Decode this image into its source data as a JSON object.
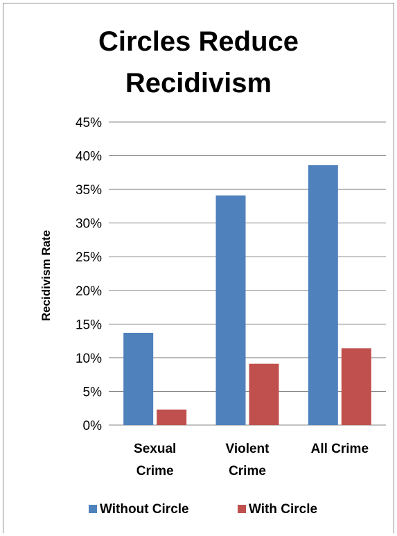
{
  "chart_data": {
    "type": "bar",
    "title_lines": [
      "Circles Reduce",
      "Recidivism"
    ],
    "ylabel": "Recidivism Rate",
    "xlabel": "",
    "categories": [
      [
        "Sexual",
        "Crime"
      ],
      [
        "Violent",
        "Crime"
      ],
      [
        "All Crime"
      ]
    ],
    "series": [
      {
        "name": "Without Circle",
        "color": "#4f81bd",
        "values": [
          13.7,
          34.1,
          38.6
        ]
      },
      {
        "name": "With Circle",
        "color": "#c0504d",
        "values": [
          2.3,
          9.1,
          11.4
        ]
      }
    ],
    "ylim": [
      0,
      45
    ],
    "ytick_step": 5,
    "ytick_labels": [
      "0%",
      "5%",
      "10%",
      "15%",
      "20%",
      "25%",
      "30%",
      "35%",
      "40%",
      "45%"
    ],
    "grid": true,
    "legend_position": "bottom",
    "gridline_color": "#868686"
  }
}
